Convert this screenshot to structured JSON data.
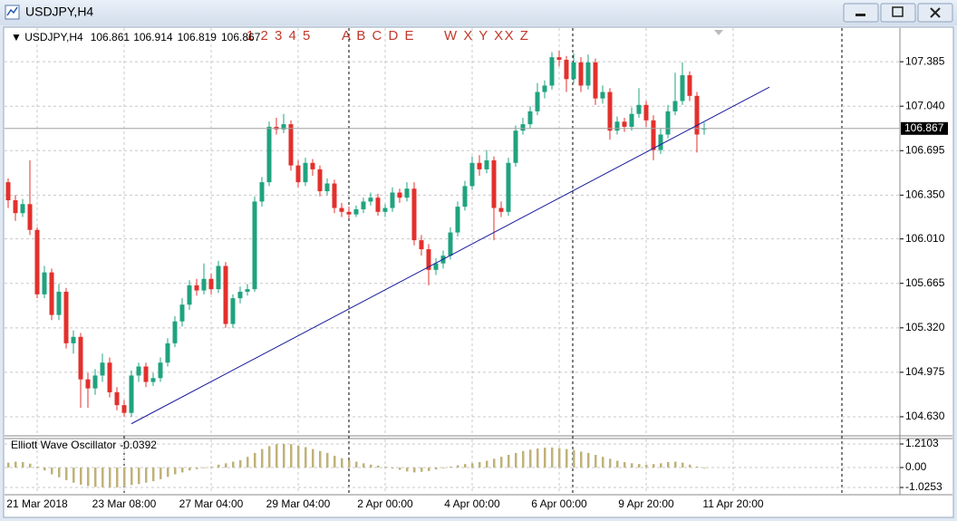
{
  "window": {
    "title": "USDJPY,H4"
  },
  "chart_data": [
    {
      "type": "candlestick",
      "title": "USDJPY,H4",
      "categories": [
        null,
        null,
        null,
        null,
        "21 Mar 2018",
        null,
        null,
        null,
        null,
        null,
        null,
        null,
        null,
        null,
        null,
        null,
        "23 Mar 08:00",
        null,
        null,
        null,
        null,
        null,
        null,
        null,
        null,
        null,
        null,
        null,
        "27 Mar 04:00",
        null,
        null,
        null,
        null,
        null,
        null,
        null,
        null,
        null,
        null,
        null,
        "29 Mar 04:00",
        null,
        null,
        null,
        null,
        null,
        null,
        null,
        null,
        null,
        null,
        null,
        "2 Apr 00:00",
        null,
        null,
        null,
        null,
        null,
        null,
        null,
        null,
        null,
        null,
        null,
        "4 Apr 00:00",
        null,
        null,
        null,
        null,
        null,
        null,
        null,
        null,
        null,
        null,
        null,
        "6 Apr 00:00",
        null,
        null,
        null,
        null,
        null,
        null,
        null,
        null,
        null,
        null,
        null,
        "9 Apr 20:00",
        null,
        null,
        null,
        null,
        null,
        null,
        null,
        null,
        null,
        null,
        null,
        "11 Apr 20:00"
      ],
      "open": [
        106.45,
        106.31,
        106.21,
        106.28,
        106.08,
        105.58,
        105.75,
        105.42,
        105.6,
        105.2,
        105.25,
        104.92,
        104.85,
        104.95,
        105.05,
        104.82,
        104.72,
        104.66,
        104.95,
        105.02,
        104.9,
        104.93,
        105.05,
        105.2,
        105.37,
        105.5,
        105.65,
        105.61,
        105.7,
        105.62,
        105.8,
        105.35,
        105.55,
        105.6,
        105.62,
        106.3,
        106.45,
        106.88,
        106.86,
        106.9,
        106.58,
        106.45,
        106.6,
        106.55,
        106.38,
        106.44,
        106.25,
        106.22,
        106.2,
        106.24,
        106.3,
        106.33,
        106.22,
        106.25,
        106.37,
        106.33,
        106.4,
        106.0,
        105.93,
        105.77,
        105.82,
        105.88,
        106.06,
        106.26,
        106.42,
        106.6,
        106.55,
        106.62,
        106.25,
        106.22,
        106.6,
        106.85,
        106.9,
        107.0,
        107.15,
        107.2,
        107.42,
        107.4,
        107.25,
        107.38,
        107.2,
        107.38,
        107.1,
        107.15,
        106.85,
        106.92,
        106.88,
        106.98,
        107.05,
        106.93,
        106.7,
        106.82,
        107.0,
        107.08,
        107.28,
        107.12,
        106.861,
        null,
        null,
        null,
        null
      ],
      "high": [
        106.48,
        106.35,
        106.32,
        106.62,
        106.1,
        105.8,
        105.78,
        105.66,
        105.63,
        105.3,
        105.28,
        104.97,
        105.0,
        105.12,
        105.09,
        104.86,
        104.76,
        104.99,
        105.05,
        105.05,
        104.97,
        105.09,
        105.24,
        105.41,
        105.55,
        105.69,
        105.7,
        105.82,
        105.74,
        105.84,
        105.83,
        105.58,
        105.64,
        105.66,
        106.34,
        106.49,
        106.92,
        106.95,
        106.98,
        106.93,
        106.62,
        106.64,
        106.63,
        106.58,
        106.48,
        106.47,
        106.29,
        106.26,
        106.27,
        106.33,
        106.37,
        106.36,
        106.28,
        106.41,
        106.4,
        106.45,
        106.45,
        106.04,
        105.97,
        105.86,
        105.92,
        106.1,
        106.3,
        106.46,
        106.65,
        106.66,
        106.7,
        106.65,
        106.3,
        106.64,
        106.89,
        106.95,
        107.04,
        107.22,
        107.24,
        107.46,
        107.47,
        107.43,
        107.45,
        107.42,
        107.44,
        107.41,
        107.2,
        107.18,
        106.96,
        106.95,
        107.03,
        107.18,
        107.08,
        106.97,
        106.87,
        107.05,
        107.3,
        107.38,
        107.31,
        107.15,
        106.914,
        null,
        null,
        null,
        null
      ],
      "low": [
        106.25,
        106.15,
        106.18,
        106.04,
        105.55,
        105.55,
        105.38,
        105.38,
        105.16,
        105.12,
        104.7,
        104.7,
        104.8,
        104.9,
        104.78,
        104.68,
        104.63,
        104.63,
        104.9,
        104.86,
        104.87,
        104.9,
        105.02,
        105.17,
        105.33,
        105.46,
        105.57,
        105.58,
        105.58,
        105.59,
        105.32,
        105.32,
        105.51,
        105.57,
        105.6,
        106.26,
        106.42,
        106.82,
        106.83,
        106.54,
        106.41,
        106.42,
        106.5,
        106.34,
        106.35,
        106.21,
        106.18,
        106.17,
        106.18,
        106.21,
        106.27,
        106.19,
        106.18,
        106.22,
        106.29,
        106.3,
        105.96,
        105.88,
        105.65,
        105.73,
        105.78,
        105.85,
        106.03,
        106.23,
        106.39,
        106.5,
        106.52,
        106.0,
        106.18,
        106.19,
        106.57,
        106.82,
        106.87,
        106.97,
        107.1,
        107.17,
        107.35,
        107.15,
        107.22,
        107.15,
        107.17,
        107.05,
        107.06,
        106.78,
        106.82,
        106.84,
        106.85,
        106.95,
        106.88,
        106.62,
        106.67,
        106.79,
        106.97,
        107.05,
        107.08,
        106.68,
        106.819,
        null,
        null,
        null,
        null
      ],
      "close": [
        106.31,
        106.21,
        106.28,
        106.08,
        105.58,
        105.75,
        105.42,
        105.6,
        105.2,
        105.25,
        104.92,
        104.85,
        104.95,
        105.05,
        104.82,
        104.72,
        104.66,
        104.95,
        105.02,
        104.9,
        104.93,
        105.05,
        105.2,
        105.37,
        105.5,
        105.65,
        105.61,
        105.7,
        105.62,
        105.8,
        105.35,
        105.55,
        105.6,
        105.62,
        106.3,
        106.45,
        106.88,
        106.86,
        106.9,
        106.58,
        106.45,
        106.6,
        106.55,
        106.38,
        106.44,
        106.25,
        106.22,
        106.2,
        106.24,
        106.3,
        106.33,
        106.22,
        106.25,
        106.37,
        106.33,
        106.4,
        106.0,
        105.93,
        105.77,
        105.82,
        105.88,
        106.06,
        106.26,
        106.42,
        106.6,
        106.55,
        106.62,
        106.25,
        106.22,
        106.6,
        106.85,
        106.9,
        107.0,
        107.15,
        107.2,
        107.42,
        107.4,
        107.25,
        107.38,
        107.2,
        107.38,
        107.1,
        107.15,
        106.85,
        106.92,
        106.88,
        106.98,
        107.05,
        106.93,
        106.7,
        106.82,
        107.0,
        107.08,
        107.28,
        107.12,
        106.82,
        106.867,
        null,
        null,
        null,
        null
      ],
      "up_color": "#1fa37f",
      "down_color": "#e3302c",
      "last_price": 106.867,
      "annotations": [
        "1 2 3 4 5",
        "A B C D E",
        "W X Y XX Z"
      ],
      "annotation_color": "#c0392b",
      "trendline": {
        "x": [
          17,
          105
        ],
        "y": [
          104.576,
          107.188
        ],
        "color": "#1a1a9c"
      },
      "ylim": [
        104.489,
        107.639
      ],
      "yticks": [
        {
          "value": 104.63,
          "label": "104.630"
        },
        104.975,
        {
          "value": 105.32,
          "label": "105.320"
        },
        105.665,
        {
          "value": 106.01,
          "label": "106.010"
        },
        {
          "value": 106.35,
          "label": "106.350"
        },
        106.695,
        {
          "value": 107.04,
          "label": "107.040"
        },
        107.385
      ],
      "grid": true
    },
    {
      "type": "bar",
      "title": "Elliott Wave Oscillator",
      "values": [
        0.25,
        0.3,
        0.28,
        0.2,
        0.05,
        -0.15,
        -0.35,
        -0.5,
        -0.65,
        -0.78,
        -0.88,
        -0.95,
        -1.0,
        -1.02,
        -1.03,
        -1.02,
        -0.98,
        -0.9,
        -0.85,
        -0.78,
        -0.7,
        -0.6,
        -0.48,
        -0.35,
        -0.25,
        -0.15,
        -0.08,
        -0.02,
        0.05,
        0.15,
        0.22,
        0.3,
        0.38,
        0.55,
        0.75,
        0.95,
        1.1,
        1.2,
        1.22,
        1.2,
        1.12,
        1.05,
        0.95,
        0.85,
        0.75,
        0.6,
        0.48,
        0.38,
        0.3,
        0.22,
        0.15,
        0.1,
        0.05,
        -0.05,
        -0.12,
        -0.2,
        -0.25,
        -0.22,
        -0.18,
        -0.1,
        -0.02,
        0.05,
        0.12,
        0.18,
        0.22,
        0.28,
        0.35,
        0.45,
        0.55,
        0.65,
        0.75,
        0.85,
        0.92,
        0.98,
        1.02,
        1.03,
        1.0,
        0.95,
        0.9,
        0.82,
        0.75,
        0.65,
        0.55,
        0.45,
        0.35,
        0.28,
        0.22,
        0.18,
        0.15,
        0.18,
        0.22,
        0.28,
        0.3,
        0.25,
        0.15,
        0.05,
        -0.0392,
        null,
        null,
        null,
        null
      ],
      "color": "#bfb27a",
      "ylim": [
        -1.397,
        1.49
      ],
      "yticks": [
        {
          "value": 1.2103,
          "label": "1.2103"
        },
        {
          "value": 0,
          "label": "0.00"
        },
        {
          "value": -1.0253,
          "label": "-1.0253"
        }
      ],
      "grid": true
    }
  ]
}
